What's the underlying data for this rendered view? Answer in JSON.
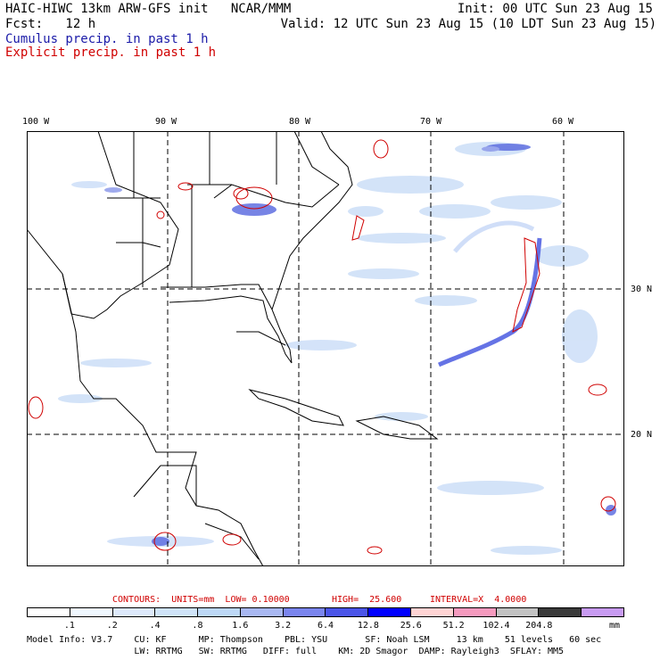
{
  "header": {
    "model_title": "HAIC-HIWC 13km ARW-GFS init   NCAR/MMM",
    "init": "Init: 00 UTC Sun 23 Aug 15",
    "fcst": "Fcst:   12 h",
    "valid": "Valid: 12 UTC Sun 23 Aug 15 (10 LDT Sun 23 Aug 15)",
    "cumulus_label": "Cumulus precip. in past 1 h",
    "explicit_label": "Explicit precip. in past 1 h"
  },
  "map": {
    "lon_labels": [
      "100 W",
      "90 W",
      "80 W",
      "70 W",
      "60 W"
    ],
    "lat_labels": [
      "30 N",
      "20 N"
    ]
  },
  "contours": {
    "units": "CONTOURS:  UNITS=mm  LOW= 0.10000",
    "high": "HIGH=  25.600",
    "interval": "INTERVAL=X  4.0000"
  },
  "colorbar": {
    "unit": "mm",
    "labels": [
      ".1",
      ".2",
      ".4",
      ".8",
      "1.6",
      "3.2",
      "6.4",
      "12.8",
      "25.6",
      "51.2",
      "102.4",
      "204.8"
    ],
    "colors": [
      "#ffffff",
      "#f0f8ff",
      "#dde9fb",
      "#cfe3f8",
      "#bdd8f6",
      "#a9b8f2",
      "#7a85ee",
      "#4b55e8",
      "#0000ff",
      "#ffd4d4",
      "#f59abe",
      "#c2c2c2",
      "#3a3a3a",
      "#c89bf2"
    ]
  },
  "footer": {
    "line1": "Model Info: V3.7    CU: KF      MP: Thompson    PBL: YSU       SF: Noah LSM     13 km    51 levels   60 sec",
    "line2": "                    LW: RRTMG   SW: RRTMG   DIFF: full    KM: 2D Smagor  DAMP: Rayleigh3  SFLAY: MM5"
  }
}
